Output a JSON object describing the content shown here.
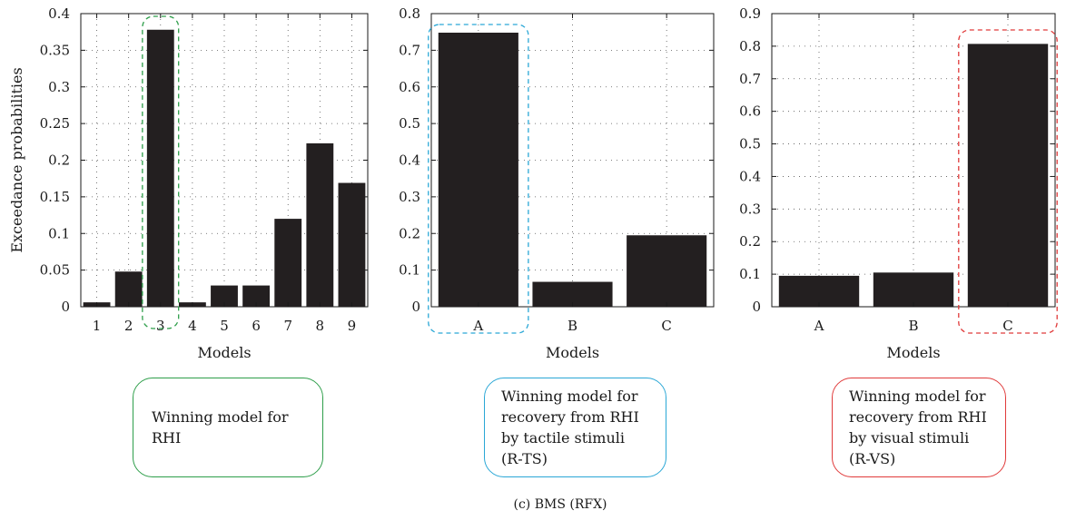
{
  "chart_data": [
    {
      "type": "bar",
      "categories": [
        "1",
        "2",
        "3",
        "4",
        "5",
        "6",
        "7",
        "8",
        "9"
      ],
      "values": [
        0.006,
        0.048,
        0.378,
        0.006,
        0.029,
        0.029,
        0.12,
        0.223,
        0.169
      ],
      "ylim": [
        0,
        0.4
      ],
      "yticks": [
        "0",
        "0.05",
        "0.1",
        "0.15",
        "0.2",
        "0.25",
        "0.3",
        "0.35",
        "0.4"
      ],
      "ylabel": "Exceedance probabilities",
      "xlabel": "Models",
      "grid": true,
      "highlight_index": 2,
      "highlight_color": "#2e9e4a",
      "callout_text": "Winning model for\nRHI"
    },
    {
      "type": "bar",
      "categories": [
        "A",
        "B",
        "C"
      ],
      "values": [
        0.748,
        0.068,
        0.195
      ],
      "ylim": [
        0,
        0.8
      ],
      "yticks": [
        "0",
        "0.1",
        "0.2",
        "0.3",
        "0.4",
        "0.5",
        "0.6",
        "0.7",
        "0.8"
      ],
      "ylabel": "",
      "xlabel": "Models",
      "grid": true,
      "highlight_index": 0,
      "highlight_color": "#2aa7d6",
      "callout_text": "Winning model for\nrecovery from RHI\nby tactile stimuli\n(R-TS)"
    },
    {
      "type": "bar",
      "categories": [
        "A",
        "B",
        "C"
      ],
      "values": [
        0.095,
        0.105,
        0.807
      ],
      "ylim": [
        0,
        0.9
      ],
      "yticks": [
        "0",
        "0.1",
        "0.2",
        "0.3",
        "0.4",
        "0.5",
        "0.6",
        "0.7",
        "0.8",
        "0.9"
      ],
      "ylabel": "",
      "xlabel": "Models",
      "grid": true,
      "highlight_index": 2,
      "highlight_color": "#e03a3a",
      "callout_text": "Winning model for\nrecovery from RHI\nby visual stimuli\n(R-VS)"
    }
  ],
  "caption": "(c)  BMS (RFX)",
  "bar_color": "#231f20"
}
